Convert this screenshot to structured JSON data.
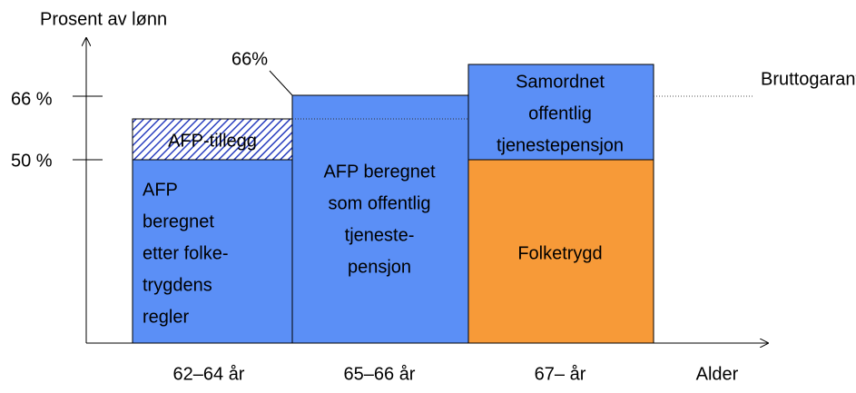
{
  "axis": {
    "y_title": "Prosent av lønn",
    "x_title": "Alder",
    "y_ticks": [
      "66 %",
      "50 %"
    ]
  },
  "periods": [
    "62–64 år",
    "65–66 år",
    "67– år"
  ],
  "blocks": {
    "afp_folketrygd": [
      "AFP",
      "beregnet",
      "etter folke-",
      "trygdens",
      "regler"
    ],
    "afp_tillegg": "AFP-tillegg",
    "afp_offentlig": [
      "AFP beregnet",
      "som offentlig",
      "tjeneste-",
      "pensjon"
    ],
    "samordnet": [
      "Samordnet",
      "offentlig",
      "tjenestepensjon"
    ],
    "folketrygd": "Folketrygd"
  },
  "annotations": {
    "level": "66%",
    "bruttogaranti": "Bruttogaranti"
  }
}
